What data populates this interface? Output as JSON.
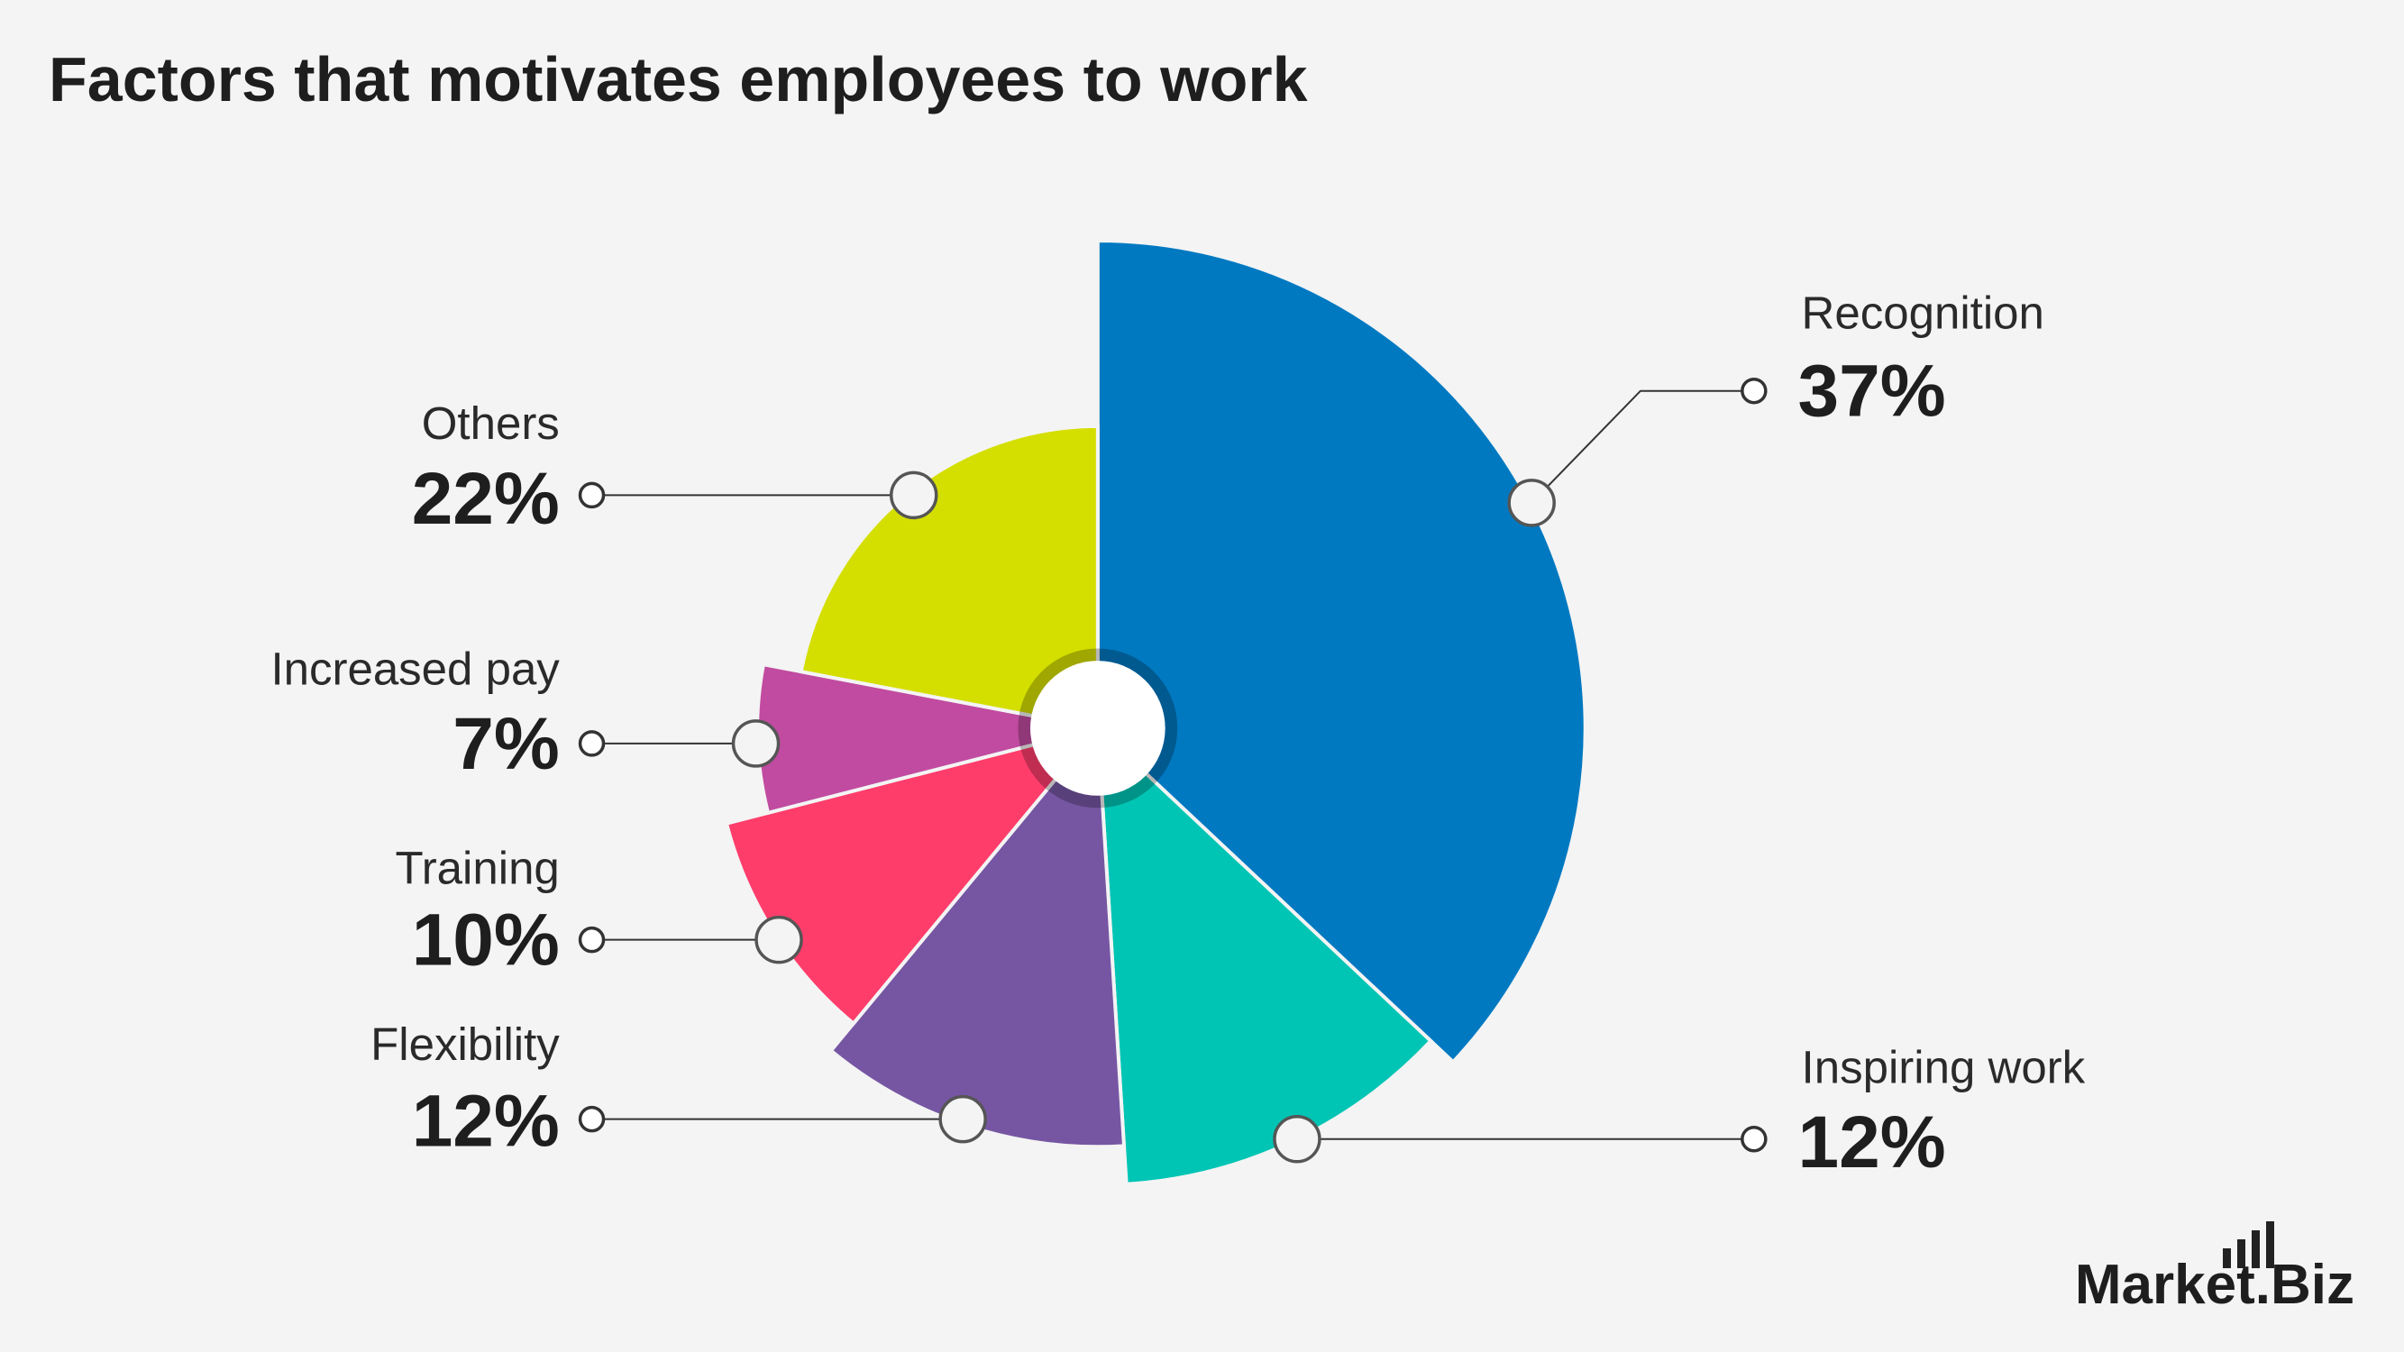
{
  "chart_data": {
    "type": "pie",
    "title": "Factors that motivates employees to work",
    "categories": [
      "Recognition",
      "Inspiring work",
      "Flexibility",
      "Training",
      "Increased pay",
      "Others"
    ],
    "values": [
      37,
      12,
      12,
      10,
      7,
      22
    ],
    "value_labels": [
      "37%",
      "12%",
      "12%",
      "10%",
      "7%",
      "22%"
    ],
    "colors": [
      "#0079c1",
      "#00c5b5",
      "#7656a3",
      "#ff3d6b",
      "#c14ba0",
      "#d4df00"
    ],
    "watermark": "Market.Biz"
  }
}
